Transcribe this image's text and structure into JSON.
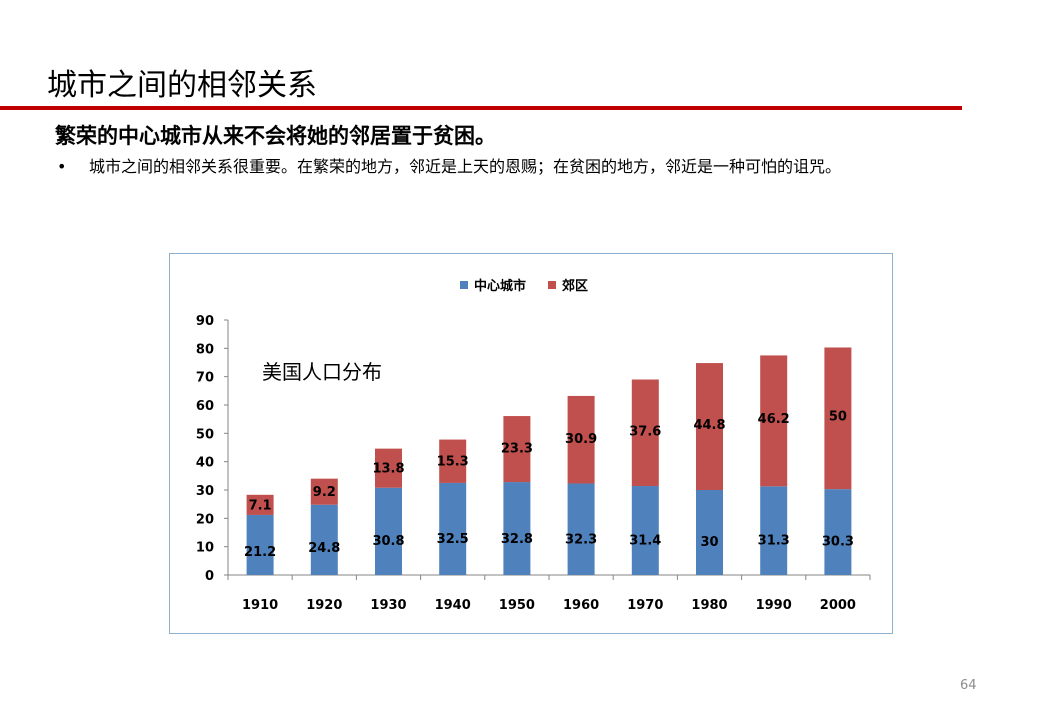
{
  "slide": {
    "title": "城市之间的相邻关系",
    "subtitle": "繁荣的中心城市从来不会将她的邻居置于贫困。",
    "bullet_symbol": "•",
    "bullet_text": "城市之间的相邻关系很重要。在繁荣的地方，邻近是上天的恩赐；在贫困的地方，邻近是一种可怕的诅咒。",
    "page_number": "64"
  },
  "colors": {
    "title_rule": "#c00000",
    "center_city": "#4f81bd",
    "suburb": "#c0504d"
  },
  "chart_data": {
    "type": "bar",
    "stacked": true,
    "annotation": "美国人口分布",
    "categories": [
      "1910",
      "1920",
      "1930",
      "1940",
      "1950",
      "1960",
      "1970",
      "1980",
      "1990",
      "2000"
    ],
    "series": [
      {
        "name": "中心城市",
        "values": [
          21.2,
          24.8,
          30.8,
          32.5,
          32.8,
          32.3,
          31.4,
          30,
          31.3,
          30.3
        ]
      },
      {
        "name": "郊区",
        "values": [
          7.1,
          9.2,
          13.8,
          15.3,
          23.3,
          30.9,
          37.6,
          44.8,
          46.2,
          50
        ]
      }
    ],
    "ylim": [
      0,
      90
    ],
    "yticks": [
      0,
      10,
      20,
      30,
      40,
      50,
      60,
      70,
      80,
      90
    ],
    "legend_position": "top",
    "grid": false
  }
}
